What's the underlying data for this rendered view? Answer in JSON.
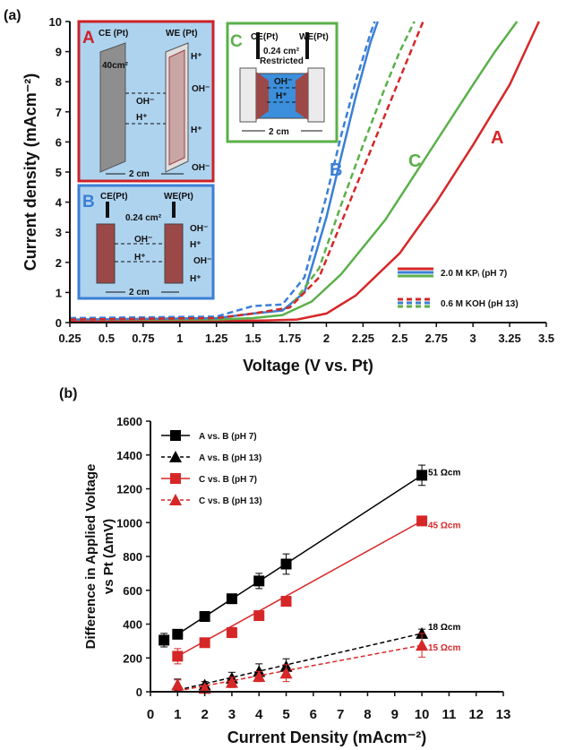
{
  "panel_a_label": "(a)",
  "panel_b_label": "(b)",
  "colors": {
    "red": "#d62728",
    "blue": "#3a7fd5",
    "green": "#5bb04a",
    "black": "#000000"
  },
  "chart_data": [
    {
      "type": "line",
      "xlabel": "Voltage (V vs. Pt)",
      "ylabel": "Current density (mAcm⁻²)",
      "xlim": [
        0.25,
        3.5
      ],
      "ylim": [
        0,
        10
      ],
      "xticks": [
        "0.25",
        "0.5",
        "0.75",
        "1",
        "1.25",
        "1.5",
        "1.75",
        "2",
        "2.25",
        "2.5",
        "2.75",
        "3",
        "3.25",
        "3.5"
      ],
      "yticks": [
        "0",
        "1",
        "2",
        "3",
        "4",
        "5",
        "6",
        "7",
        "8",
        "9",
        "10"
      ],
      "curve_labels": {
        "A": "A",
        "B": "B",
        "C": "C"
      },
      "legend": {
        "solid": "2.0 M KPᵢ (pH 7)",
        "dashed": "0.6 M KOH (pH 13)"
      },
      "series": [
        {
          "name": "A",
          "style": "solid",
          "color": "red",
          "x": [
            0.25,
            1.25,
            1.6,
            1.8,
            2.0,
            2.2,
            2.5,
            2.75,
            3.0,
            3.25,
            3.45
          ],
          "y": [
            0.05,
            0.05,
            0.07,
            0.1,
            0.3,
            0.9,
            2.3,
            4.0,
            5.9,
            7.9,
            10
          ]
        },
        {
          "name": "C",
          "style": "solid",
          "color": "green",
          "x": [
            0.25,
            1.25,
            1.5,
            1.7,
            1.9,
            2.1,
            2.4,
            2.6,
            2.8,
            3.0,
            3.15,
            3.3
          ],
          "y": [
            0.1,
            0.1,
            0.15,
            0.25,
            0.7,
            1.6,
            3.4,
            4.9,
            6.4,
            7.9,
            9.0,
            10
          ]
        },
        {
          "name": "B",
          "style": "solid",
          "color": "blue",
          "x": [
            0.25,
            1.25,
            1.5,
            1.7,
            1.85,
            2.0,
            2.1,
            2.2,
            2.3,
            2.35
          ],
          "y": [
            0.1,
            0.15,
            0.3,
            0.4,
            1.0,
            3.5,
            5.5,
            7.5,
            9.3,
            10
          ]
        },
        {
          "name": "B",
          "style": "dashed",
          "color": "blue",
          "x": [
            0.25,
            1.25,
            1.5,
            1.7,
            1.85,
            2.0,
            2.1,
            2.2,
            2.3,
            2.33
          ],
          "y": [
            0.15,
            0.2,
            0.55,
            0.6,
            1.5,
            4.2,
            6.2,
            8.0,
            9.6,
            10
          ]
        },
        {
          "name": "C",
          "style": "dashed",
          "color": "green",
          "x": [
            0.25,
            1.25,
            1.5,
            1.75,
            1.95,
            2.1,
            2.25,
            2.4,
            2.5,
            2.6
          ],
          "y": [
            0.1,
            0.15,
            0.3,
            0.5,
            1.8,
            3.9,
            5.9,
            7.8,
            9.0,
            10
          ]
        },
        {
          "name": "A",
          "style": "dashed",
          "color": "red",
          "x": [
            0.25,
            1.25,
            1.5,
            1.75,
            1.95,
            2.15,
            2.3,
            2.45,
            2.55,
            2.66
          ],
          "y": [
            0.1,
            0.15,
            0.3,
            0.5,
            1.5,
            3.9,
            5.7,
            7.5,
            8.7,
            10
          ]
        }
      ],
      "insets": {
        "A": {
          "letter": "A",
          "ce": "CE (Pt)",
          "we": "WE (Pt)",
          "area": "40cm²",
          "oh": "OH⁻",
          "h": "H⁺",
          "dist": "2 cm"
        },
        "B": {
          "letter": "B",
          "ce": "CE(Pt)",
          "we": "WE(Pt)",
          "area": "0.24 cm²",
          "oh": "OH⁻",
          "h": "H⁺",
          "dist": "2 cm"
        },
        "C": {
          "letter": "C",
          "ce": "CE(Pt)",
          "we": "WE(Pt)",
          "area": "0.24 cm²",
          "restricted": "Restricted",
          "oh": "OH⁻",
          "h": "H⁺",
          "dist": "2 cm"
        }
      }
    },
    {
      "type": "scatter",
      "xlabel": "Current Density (mAcm⁻²)",
      "ylabel_line1": "Difference in Applied Voltage",
      "ylabel_line2": "vs Pt (ΔmV)",
      "xlim": [
        0,
        13
      ],
      "ylim": [
        0,
        1600
      ],
      "xticks": [
        "0",
        "1",
        "2",
        "3",
        "4",
        "5",
        "6",
        "7",
        "8",
        "9",
        "10",
        "11",
        "12",
        "13"
      ],
      "yticks": [
        "0",
        "200",
        "400",
        "600",
        "800",
        "1000",
        "1200",
        "1400",
        "1600"
      ],
      "series": [
        {
          "name": "A vs. B (pH 7)",
          "marker": "square",
          "color": "black",
          "line": "solid",
          "x": [
            0.5,
            1,
            2,
            3,
            4,
            5,
            10
          ],
          "y": [
            305,
            340,
            445,
            550,
            655,
            755,
            1280
          ],
          "err": [
            40,
            25,
            15,
            25,
            45,
            60,
            60
          ],
          "fit": [
            [
              1,
              340
            ],
            [
              10,
              1280
            ]
          ],
          "resistance": "51 Ωcm"
        },
        {
          "name": "A vs. B (pH 13)",
          "marker": "triangle",
          "color": "black",
          "line": "dashed",
          "x": [
            1,
            2,
            3,
            4,
            5,
            10
          ],
          "y": [
            40,
            40,
            80,
            120,
            150,
            345
          ],
          "err": [
            35,
            20,
            35,
            45,
            45,
            25
          ],
          "fit": [
            [
              1,
              10
            ],
            [
              10,
              345
            ]
          ],
          "resistance": "18 Ωcm"
        },
        {
          "name": "C vs. B (pH 7)",
          "marker": "square",
          "color": "red",
          "line": "solid",
          "x": [
            1,
            2,
            3,
            4,
            5,
            10
          ],
          "y": [
            210,
            290,
            350,
            450,
            535,
            1010
          ],
          "err": [
            45,
            20,
            30,
            10,
            15,
            15
          ],
          "fit": [
            [
              1,
              210
            ],
            [
              10,
              1010
            ]
          ],
          "resistance": "45 Ωcm"
        },
        {
          "name": "C vs. B (pH 13)",
          "marker": "triangle",
          "color": "red",
          "line": "dashed",
          "x": [
            1,
            2,
            3,
            4,
            5,
            10
          ],
          "y": [
            40,
            20,
            55,
            90,
            110,
            275
          ],
          "err": [
            30,
            15,
            30,
            30,
            50,
            70
          ],
          "fit": [
            [
              1,
              5
            ],
            [
              10,
              275
            ]
          ],
          "resistance": "15 Ωcm"
        }
      ]
    }
  ]
}
